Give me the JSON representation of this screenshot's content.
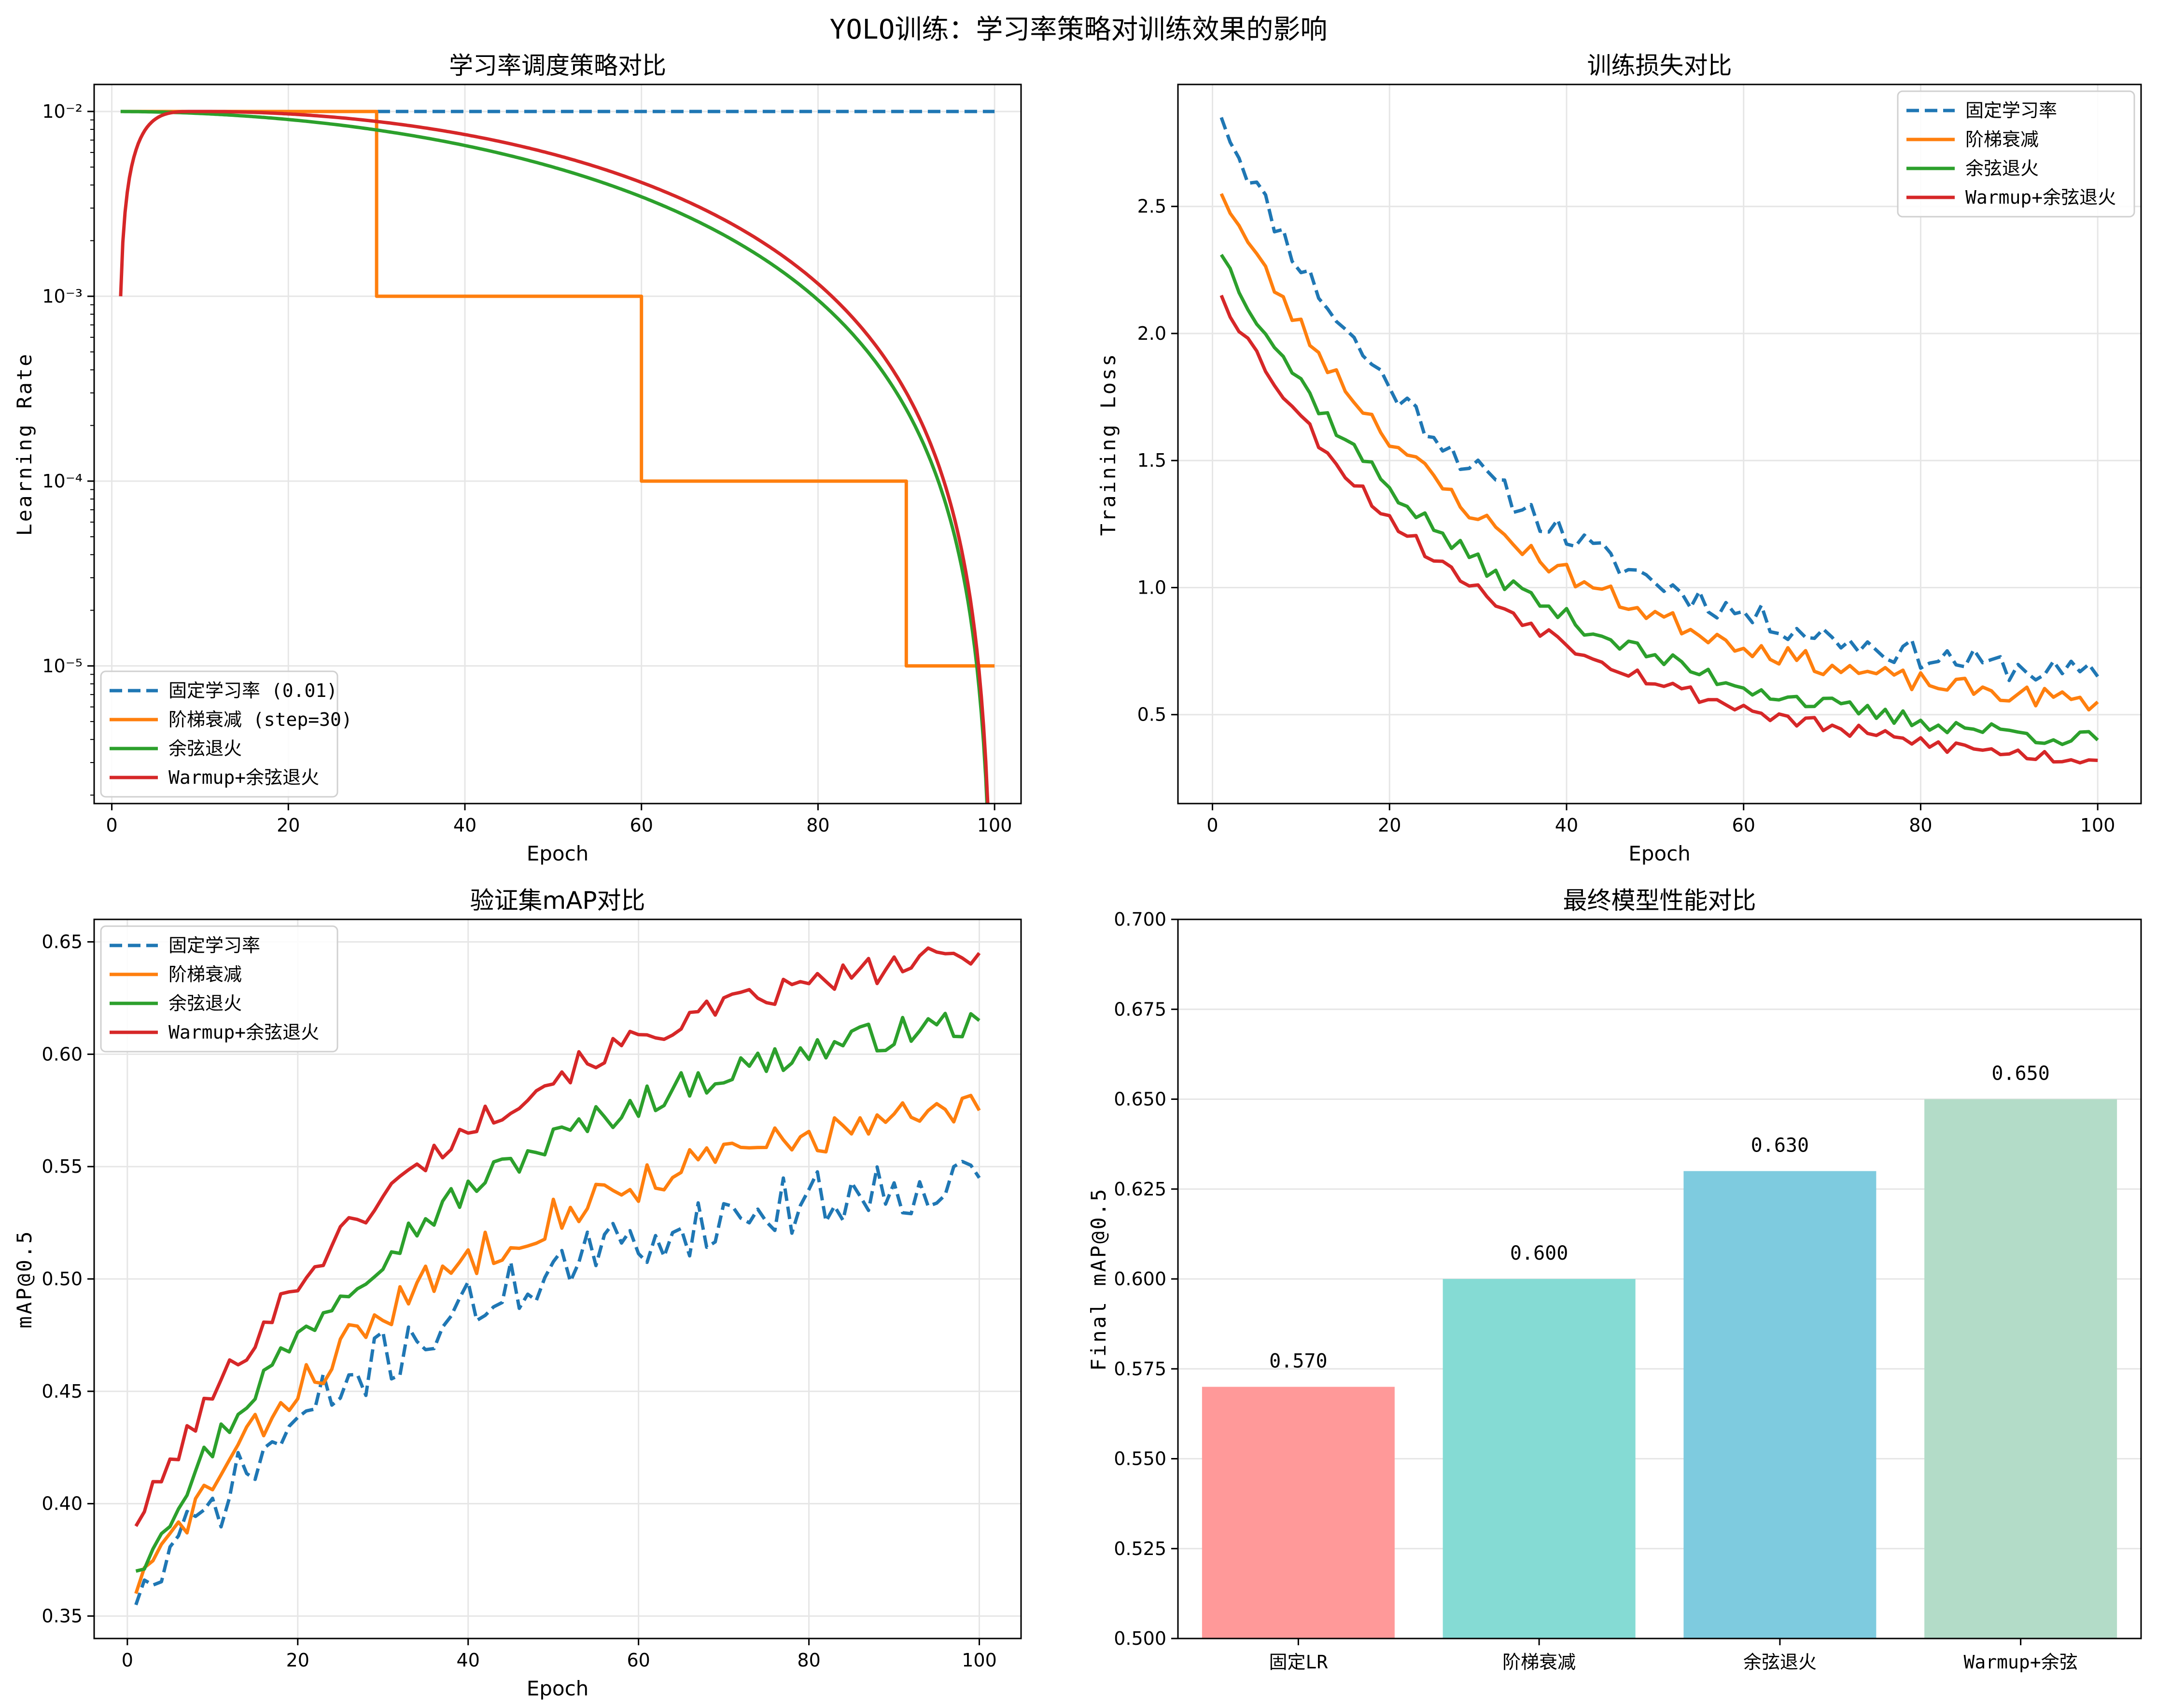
{
  "figure_title": "YOLO训练：学习率策略对训练效果的影响",
  "colors": {
    "blue": "#1f77b4",
    "orange": "#ff7f0e",
    "green": "#2ca02c",
    "red": "#d62728"
  },
  "chart_data": [
    {
      "type": "line",
      "title": "学习率调度策略对比",
      "xlabel": "Epoch",
      "ylabel": "Learning Rate",
      "yscale": "log",
      "xlim": [
        -2,
        103
      ],
      "ylim": [
        1.8e-06,
        0.014
      ],
      "xticks": [
        0,
        20,
        40,
        60,
        80,
        100
      ],
      "yticks": [
        {
          "value": 0.01,
          "label": "10⁻²"
        },
        {
          "value": 0.001,
          "label": "10⁻³"
        },
        {
          "value": 0.0001,
          "label": "10⁻⁴"
        },
        {
          "value": 1e-05,
          "label": "10⁻⁵"
        }
      ],
      "legend_position": "lower-left",
      "series": [
        {
          "name": "固定学习率 (0.01)",
          "color": "#1f77b4",
          "dashed": true,
          "kind": "const"
        },
        {
          "name": "阶梯衰减 (step=30)",
          "color": "#ff7f0e",
          "dashed": false,
          "kind": "step"
        },
        {
          "name": "余弦退火",
          "color": "#2ca02c",
          "dashed": false,
          "kind": "cosine"
        },
        {
          "name": "Warmup+余弦退火",
          "color": "#d62728",
          "dashed": false,
          "kind": "warmup"
        }
      ]
    },
    {
      "type": "line",
      "title": "训练损失对比",
      "xlabel": "Epoch",
      "ylabel": "Training Loss",
      "xlim": [
        -3.9,
        104.9
      ],
      "ylim": [
        0.15,
        2.98
      ],
      "xticks": [
        0,
        20,
        40,
        60,
        80,
        100
      ],
      "yticks": [
        0.5,
        1.0,
        1.5,
        2.0,
        2.5
      ],
      "legend_position": "upper-right",
      "series": [
        {
          "name": "固定学习率",
          "color": "#1f77b4",
          "dashed": true,
          "start": 2.85,
          "end": 0.65,
          "noise": 0.055,
          "seed": 11
        },
        {
          "name": "阶梯衰减",
          "color": "#ff7f0e",
          "dashed": false,
          "start": 2.55,
          "end": 0.55,
          "noise": 0.04,
          "seed": 23
        },
        {
          "name": "余弦退火",
          "color": "#2ca02c",
          "dashed": false,
          "start": 2.31,
          "end": 0.4,
          "noise": 0.035,
          "seed": 37
        },
        {
          "name": "Warmup+余弦退火",
          "color": "#d62728",
          "dashed": false,
          "start": 2.15,
          "end": 0.32,
          "noise": 0.03,
          "seed": 53
        }
      ]
    },
    {
      "type": "line",
      "title": "验证集mAP对比",
      "xlabel": "Epoch",
      "ylabel": "mAP@0.5",
      "xlim": [
        -3.9,
        104.9
      ],
      "ylim": [
        0.34,
        0.66
      ],
      "xticks": [
        0,
        20,
        40,
        60,
        80,
        100
      ],
      "yticks": [
        0.35,
        0.4,
        0.45,
        0.5,
        0.55,
        0.6,
        0.65
      ],
      "legend_position": "upper-left",
      "series": [
        {
          "name": "固定学习率",
          "color": "#1f77b4",
          "dashed": true,
          "start": 0.355,
          "end": 0.545,
          "noise": 0.013,
          "seed": 71
        },
        {
          "name": "阶梯衰减",
          "color": "#ff7f0e",
          "dashed": false,
          "start": 0.36,
          "end": 0.575,
          "noise": 0.009,
          "seed": 83
        },
        {
          "name": "余弦退火",
          "color": "#2ca02c",
          "dashed": false,
          "start": 0.37,
          "end": 0.615,
          "noise": 0.007,
          "seed": 97
        },
        {
          "name": "Warmup+余弦退火",
          "color": "#d62728",
          "dashed": false,
          "start": 0.39,
          "end": 0.645,
          "noise": 0.006,
          "seed": 101
        }
      ]
    },
    {
      "type": "bar",
      "title": "最终模型性能对比",
      "xlabel": "",
      "ylabel": "Final mAP@0.5",
      "ylim": [
        0.5,
        0.7
      ],
      "yticks": [
        0.5,
        0.525,
        0.55,
        0.575,
        0.6,
        0.625,
        0.65,
        0.675,
        0.7
      ],
      "categories": [
        "固定LR",
        "阶梯衰减",
        "余弦退火",
        "Warmup+余弦"
      ],
      "values": [
        0.57,
        0.6,
        0.63,
        0.65
      ],
      "value_labels": [
        "0.570",
        "0.600",
        "0.630",
        "0.650"
      ],
      "bar_colors": [
        "#ff9999",
        "#85dbd4",
        "#7ecbdf",
        "#b3dcc8"
      ]
    }
  ]
}
